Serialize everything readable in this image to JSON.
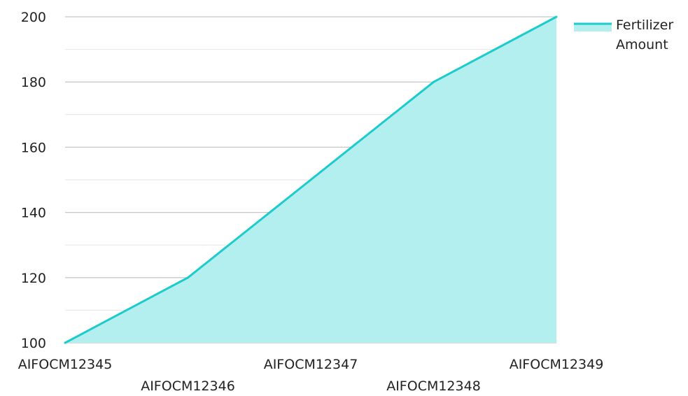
{
  "chart_data": {
    "type": "area",
    "categories": [
      "AIFOCM12345",
      "AIFOCM12346",
      "AIFOCM12347",
      "AIFOCM12348",
      "AIFOCM12349"
    ],
    "series": [
      {
        "name": "Fertilizer Amount",
        "values": [
          100,
          120,
          150,
          180,
          200
        ],
        "line_color": "#1ccbcb",
        "fill_color": "#b2efee"
      }
    ],
    "title": "",
    "xlabel": "",
    "ylabel": "",
    "ylim": [
      100,
      200
    ],
    "yticks": [
      100,
      120,
      140,
      160,
      180,
      200
    ],
    "grid": true,
    "legend_position": "top-right"
  }
}
